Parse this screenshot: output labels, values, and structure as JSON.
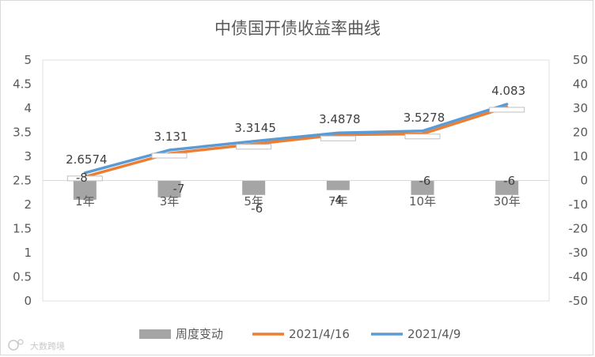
{
  "chart_data": {
    "type": "combo",
    "title": "中债国开债收益率曲线",
    "categories": [
      "1年",
      "3年",
      "5年",
      "7年",
      "10年",
      "30年"
    ],
    "y_left": {
      "ylim": [
        0,
        5
      ],
      "ticks": [
        "0",
        "0.5",
        "1",
        "1.5",
        "2",
        "2.5",
        "3",
        "3.5",
        "4",
        "4.5",
        "5"
      ]
    },
    "y_right": {
      "ylim": [
        -50,
        50
      ],
      "ticks": [
        "-50",
        "-40",
        "-30",
        "-20",
        "-10",
        "0",
        "10",
        "20",
        "30",
        "40",
        "50"
      ]
    },
    "series": [
      {
        "name": "周度变动",
        "type": "bar",
        "axis": "right",
        "color": "#a5a5a5",
        "values": [
          -8,
          -7,
          -6,
          -4,
          -6,
          -6
        ],
        "labels": [
          "-8",
          "-7",
          "-6",
          "-4",
          "-6",
          "-6"
        ]
      },
      {
        "name": "2021/4/16",
        "type": "line",
        "axis": "left",
        "color": "#ed7d31",
        "values": [
          2.5774,
          3.061,
          3.2545,
          3.4478,
          3.4678,
          4.023
        ]
      },
      {
        "name": "2021/4/9",
        "type": "line",
        "axis": "left",
        "color": "#5b9bd5",
        "values": [
          2.6574,
          3.131,
          3.3145,
          3.4878,
          3.5278,
          4.083
        ],
        "labels": [
          "2.6574",
          "3.131",
          "3.3145",
          "3.4878",
          "3.5278",
          "4.083"
        ]
      }
    ],
    "grid": false,
    "legend": "bottom"
  },
  "watermark": {
    "text": "大数跨境",
    "icon": "logo-icon"
  }
}
